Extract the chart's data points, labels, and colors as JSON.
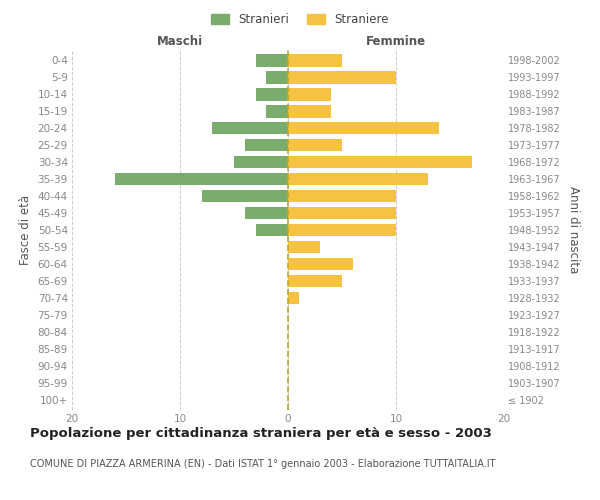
{
  "age_groups": [
    "100+",
    "95-99",
    "90-94",
    "85-89",
    "80-84",
    "75-79",
    "70-74",
    "65-69",
    "60-64",
    "55-59",
    "50-54",
    "45-49",
    "40-44",
    "35-39",
    "30-34",
    "25-29",
    "20-24",
    "15-19",
    "10-14",
    "5-9",
    "0-4"
  ],
  "birth_years": [
    "≤ 1902",
    "1903-1907",
    "1908-1912",
    "1913-1917",
    "1918-1922",
    "1923-1927",
    "1928-1932",
    "1933-1937",
    "1938-1942",
    "1943-1947",
    "1948-1952",
    "1953-1957",
    "1958-1962",
    "1963-1967",
    "1968-1972",
    "1973-1977",
    "1978-1982",
    "1983-1987",
    "1988-1992",
    "1993-1997",
    "1998-2002"
  ],
  "maschi": [
    0,
    0,
    0,
    0,
    0,
    0,
    0,
    0,
    0,
    0,
    3,
    4,
    8,
    16,
    5,
    4,
    7,
    2,
    3,
    2,
    3
  ],
  "femmine": [
    0,
    0,
    0,
    0,
    0,
    0,
    1,
    5,
    6,
    3,
    10,
    10,
    10,
    13,
    17,
    5,
    14,
    4,
    4,
    10,
    5
  ],
  "maschi_color": "#7aad6b",
  "femmine_color": "#f5c242",
  "center_line_color": "#b8a830",
  "grid_color": "#cccccc",
  "background_color": "#ffffff",
  "title": "Popolazione per cittadinanza straniera per età e sesso - 2003",
  "subtitle": "COMUNE DI PIAZZA ARMERINA (EN) - Dati ISTAT 1° gennaio 2003 - Elaborazione TUTTAITALIA.IT",
  "xlabel_left": "Maschi",
  "xlabel_right": "Femmine",
  "ylabel_left": "Fasce di età",
  "ylabel_right": "Anni di nascita",
  "legend_stranieri": "Stranieri",
  "legend_straniere": "Straniere",
  "xlim": 20,
  "title_fontsize": 9.5,
  "subtitle_fontsize": 7,
  "tick_fontsize": 7.5,
  "label_fontsize": 8.5
}
